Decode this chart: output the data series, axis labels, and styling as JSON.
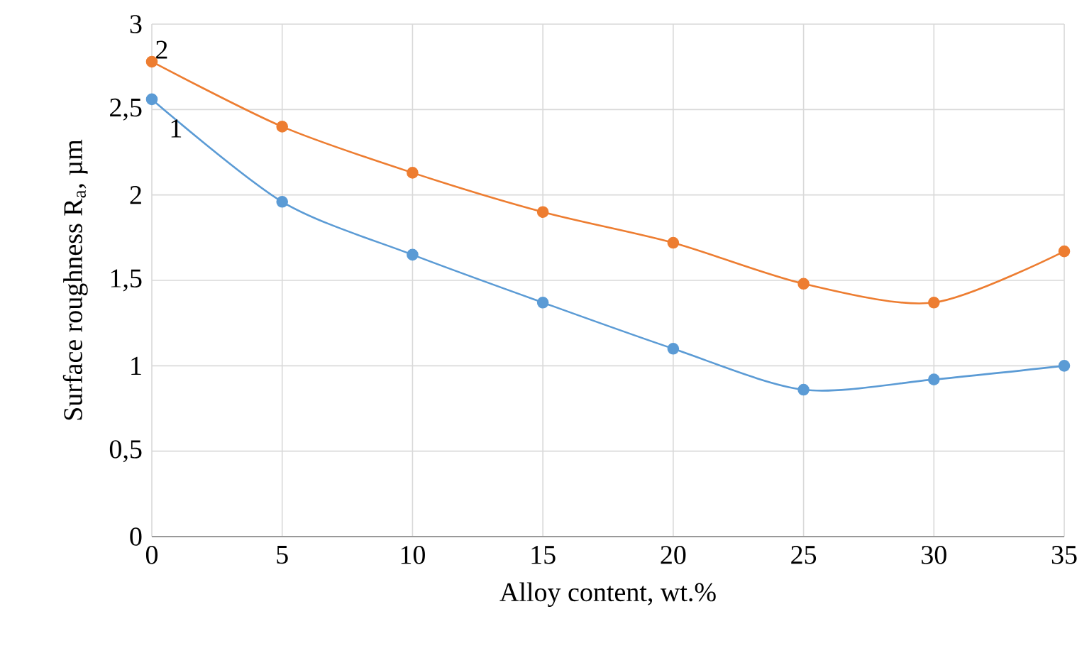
{
  "chart_data": {
    "type": "line",
    "xlabel": "Alloy content, wt.%",
    "ylabel": "Surface roughness  R$_{a}$, µm",
    "x": [
      0,
      5,
      10,
      15,
      20,
      25,
      30,
      35
    ],
    "series": [
      {
        "name": "1",
        "color": "#5b9bd5",
        "values": [
          2.56,
          1.96,
          1.65,
          1.37,
          1.1,
          0.86,
          0.92,
          1.0
        ]
      },
      {
        "name": "2",
        "color": "#ed7d31",
        "values": [
          2.78,
          2.4,
          2.13,
          1.9,
          1.72,
          1.48,
          1.37,
          1.67
        ]
      }
    ],
    "xlim": [
      0,
      35
    ],
    "xticks": [
      0,
      5,
      10,
      15,
      20,
      25,
      30,
      35
    ],
    "ylim": [
      0,
      3
    ],
    "yticks": [
      0,
      {
        "value": 0.5,
        "label": "0,5"
      },
      1,
      {
        "value": 1.5,
        "label": "1,5"
      },
      2,
      {
        "value": 2.5,
        "label": "2,5"
      },
      3
    ],
    "grid": true,
    "marker": "circle",
    "line_style": "solid"
  }
}
